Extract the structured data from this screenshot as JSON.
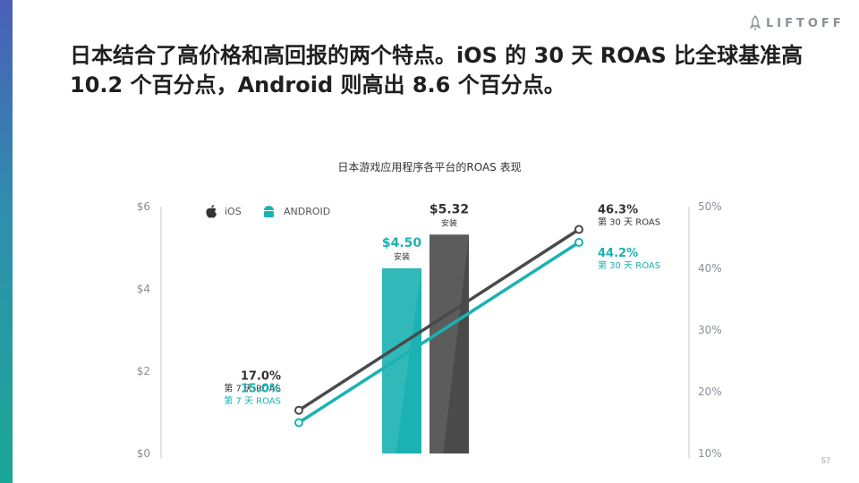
{
  "brand": {
    "logo_text": "LIFTOFF"
  },
  "headline": "日本结合了高价格和高回报的两个特点。iOS 的 30 天 ROAS 比全球基准高 10.2 个百分点，Android 则高出 8.6 个百分点。",
  "page_number": "57",
  "colors": {
    "ios": "#4a4a4a",
    "android": "#1ab2b2",
    "axis_text": "#8a8f96"
  },
  "chart_data": {
    "type": "bar+line",
    "title": "日本游戏应用程序各平台的ROAS 表现",
    "legend": {
      "placement": "top-left",
      "items": [
        {
          "name": "iOS",
          "icon": "apple-icon",
          "color": "#333333"
        },
        {
          "name": "ANDROID",
          "icon": "android-icon",
          "color": "#1ab2b2"
        }
      ]
    },
    "left_axis": {
      "min": 0,
      "max": 6,
      "ticks": [
        "$0",
        "$2",
        "$4",
        "$6"
      ],
      "tick_values": [
        0,
        2,
        4,
        6
      ]
    },
    "right_axis": {
      "min": 10,
      "max": 50,
      "ticks": [
        "10%",
        "20%",
        "30%",
        "40%",
        "50%"
      ],
      "tick_values": [
        10,
        20,
        30,
        40,
        50
      ]
    },
    "bars": [
      {
        "series": "Android",
        "value": 4.5,
        "label": "$4.50",
        "sublabel": "安装",
        "color": "#1ab2b2"
      },
      {
        "series": "iOS",
        "value": 5.32,
        "label": "$5.32",
        "sublabel": "安装",
        "color": "#4a4a4a"
      }
    ],
    "lines": [
      {
        "series": "iOS",
        "color": "#4a4a4a",
        "points": [
          {
            "x": "第 7 天",
            "y": 17.0,
            "label": "17.0%",
            "sublabel": "第 7 天 ROAS"
          },
          {
            "x": "第 30 天",
            "y": 46.3,
            "label": "46.3%",
            "sublabel": "第 30 天 ROAS"
          }
        ]
      },
      {
        "series": "Android",
        "color": "#1ab2b2",
        "points": [
          {
            "x": "第 7 天",
            "y": 15.0,
            "label": "15.0%",
            "sublabel": "第 7 天 ROAS"
          },
          {
            "x": "第 30 天",
            "y": 44.2,
            "label": "44.2%",
            "sublabel": "第 30 天 ROAS"
          }
        ]
      }
    ]
  }
}
